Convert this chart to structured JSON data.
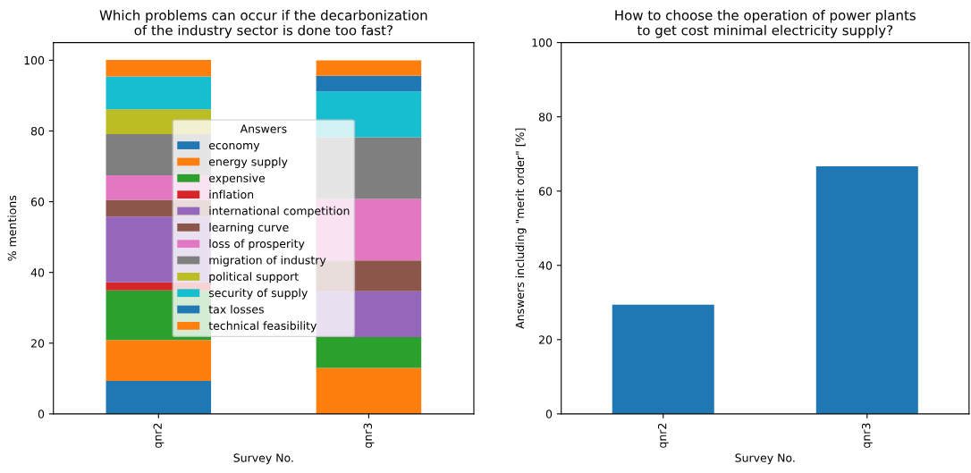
{
  "chart_data": [
    {
      "type": "bar",
      "stacked": true,
      "title": "Which problems can occur if the decarbonization\nof the industry sector is done too fast?",
      "xlabel": "Survey No.",
      "ylabel": "% mentions",
      "categories": [
        "qnr2",
        "qnr3"
      ],
      "ylim": [
        0,
        105
      ],
      "yticks": [
        0,
        20,
        40,
        60,
        80,
        100
      ],
      "grid": false,
      "legend": "center",
      "legend_title": "Answers",
      "series": [
        {
          "name": "economy",
          "color": "#1f77b4",
          "values": [
            9.3,
            0
          ]
        },
        {
          "name": "energy supply",
          "color": "#ff7f0e",
          "values": [
            11.6,
            13.0
          ]
        },
        {
          "name": "expensive",
          "color": "#2ca02c",
          "values": [
            14.0,
            8.7
          ]
        },
        {
          "name": "inflation",
          "color": "#d62728",
          "values": [
            2.3,
            0
          ]
        },
        {
          "name": "international competition",
          "color": "#9467bd",
          "values": [
            18.6,
            13.0
          ]
        },
        {
          "name": "learning curve",
          "color": "#8c564b",
          "values": [
            4.7,
            8.7
          ]
        },
        {
          "name": "loss of prosperity",
          "color": "#e377c2",
          "values": [
            7.0,
            17.4
          ]
        },
        {
          "name": "migration of industry",
          "color": "#7f7f7f",
          "values": [
            11.6,
            17.4
          ]
        },
        {
          "name": "political support",
          "color": "#bcbd22",
          "values": [
            7.0,
            0
          ]
        },
        {
          "name": "security of supply",
          "color": "#17becf",
          "values": [
            9.3,
            13.0
          ]
        },
        {
          "name": "tax losses",
          "color": "#1f77b4",
          "values": [
            0,
            4.4
          ]
        },
        {
          "name": "technical feasibility",
          "color": "#ff7f0e",
          "values": [
            4.7,
            4.4
          ]
        }
      ]
    },
    {
      "type": "bar",
      "title": "How to choose the operation of power plants\nto get cost minimal electricity supply?",
      "xlabel": "Survey No.",
      "ylabel": "Answers including \"merit order\" [%]",
      "categories": [
        "qnr2",
        "qnr3"
      ],
      "ylim": [
        0,
        100
      ],
      "yticks": [
        0,
        20,
        40,
        60,
        80,
        100
      ],
      "grid": false,
      "legend": false,
      "series": [
        {
          "color": "#1f77b4",
          "values": [
            29.4,
            66.7
          ]
        }
      ]
    }
  ]
}
